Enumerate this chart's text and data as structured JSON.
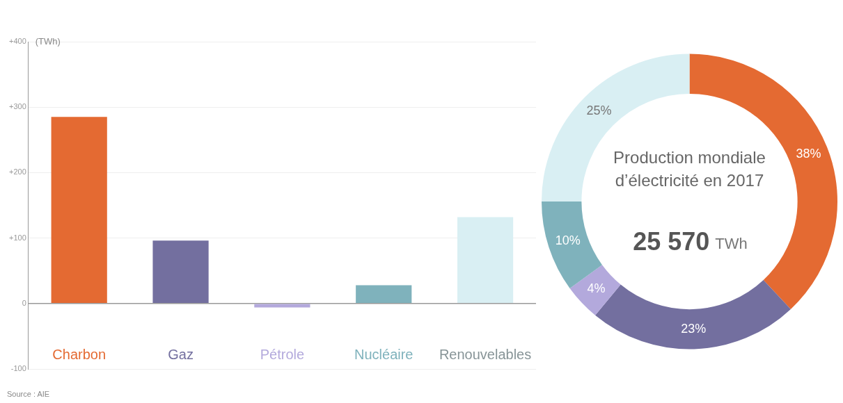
{
  "chart_data": [
    {
      "type": "bar",
      "ylabel": "(TWh)",
      "categories": [
        "Charbon",
        "Gaz",
        "Pétrole",
        "Nucléaire",
        "Renouvelables"
      ],
      "values": [
        285,
        96,
        -6,
        28,
        132
      ],
      "colors": [
        "#e46a32",
        "#736f9f",
        "#b3a9dc",
        "#7fb2bc",
        "#d9eff3"
      ],
      "ylim": [
        -100,
        400
      ],
      "yticks": [
        {
          "value": -100,
          "label": "-100"
        },
        {
          "value": 0,
          "label": "0"
        },
        {
          "value": 100,
          "label": "+100"
        },
        {
          "value": 200,
          "label": "+200"
        },
        {
          "value": 300,
          "label": "+300"
        },
        {
          "value": 400,
          "label": "+400"
        }
      ],
      "grid": "y",
      "legend": false,
      "annotations": [
        "Source : AIE"
      ]
    },
    {
      "type": "donut",
      "title": "Production mondiale d’électricité en 2017",
      "categories": [
        null,
        null,
        null,
        null,
        null
      ],
      "values": [
        38,
        23,
        4,
        10,
        25
      ],
      "colors": [
        "#e46a32",
        "#736f9f",
        "#b3a9dc",
        "#7fb2bc",
        "#d9eff3"
      ],
      "value_labels": [
        "38%",
        "23%",
        "4%",
        "10%",
        "25%"
      ],
      "legend": false,
      "annotations": [
        "25 570 TWh"
      ]
    }
  ]
}
